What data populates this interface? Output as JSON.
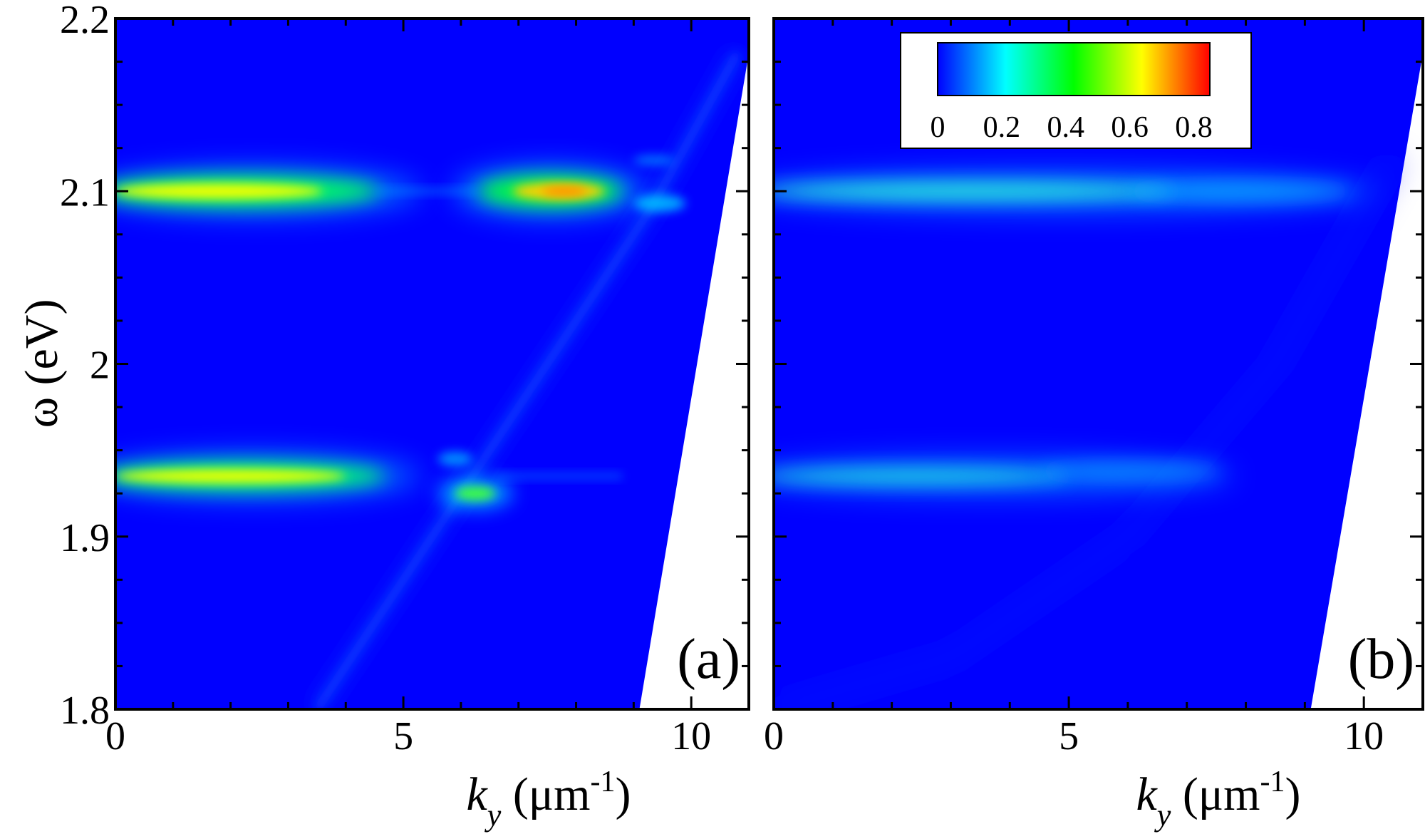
{
  "chart_data": [
    {
      "type": "heatmap",
      "panel_label": "(a)",
      "xlabel_var": "k",
      "xlabel_sub": "y",
      "xlabel_unit_open": " (μm",
      "xlabel_unit_sup": "-1",
      "xlabel_unit_close": ")",
      "ylabel": "ω (eV)",
      "xlim": [
        0,
        11
      ],
      "ylim": [
        1.8,
        2.2
      ],
      "x_ticks": [
        0,
        5,
        10
      ],
      "x_tick_labels": [
        "0",
        "5",
        "10"
      ],
      "y_ticks": [
        1.8,
        1.9,
        2.0,
        2.1,
        2.2
      ],
      "y_tick_labels": [
        "1.8",
        "1.9",
        "2",
        "2.1",
        "2.2"
      ],
      "background_value": 0.0,
      "undefined_region": "white wedge bounded by line from (9.1, 1.8) to (11.0, 2.18)",
      "features": [
        {
          "name": "upper exciton band",
          "omega": 2.1,
          "k_from": 0,
          "k_to": 4.5,
          "peak_intensity": 0.6
        },
        {
          "name": "upper polariton island",
          "omega": 2.1,
          "k_from": 6.3,
          "k_to": 8.8,
          "peak_intensity": 0.75
        },
        {
          "name": "lower exciton band",
          "omega": 1.935,
          "k_from": 0,
          "k_to": 4.6,
          "peak_intensity": 0.55
        },
        {
          "name": "lower anticrossing island",
          "omega": 1.925,
          "k_from": 5.7,
          "k_to": 6.8,
          "peak_intensity": 0.45
        },
        {
          "name": "dispersive photon branch",
          "points": [
            [
              3.5,
              1.8
            ],
            [
              5.9,
              1.92
            ],
            [
              7.9,
              2.02
            ],
            [
              9.3,
              2.09
            ],
            [
              10.8,
              2.18
            ]
          ],
          "peak_intensity": 0.15
        }
      ]
    },
    {
      "type": "heatmap",
      "panel_label": "(b)",
      "xlabel_var": "k",
      "xlabel_sub": "y",
      "xlabel_unit_open": " (μm",
      "xlabel_unit_sup": "-1",
      "xlabel_unit_close": ")",
      "xlim": [
        0,
        11
      ],
      "ylim": [
        1.8,
        2.2
      ],
      "x_ticks": [
        0,
        5,
        10
      ],
      "x_tick_labels": [
        "0",
        "5",
        "10"
      ],
      "y_ticks": [
        1.8,
        1.9,
        2.0,
        2.1,
        2.2
      ],
      "background_value": 0.0,
      "undefined_region": "white wedge bounded by line from (9.1, 1.8) to (11.0, 2.18)",
      "features": [
        {
          "name": "upper exciton band (fading)",
          "omega": 2.1,
          "k_from": 0,
          "k_to": 10,
          "peak_intensity": 0.25
        },
        {
          "name": "lower exciton band (fading)",
          "omega": 1.935,
          "k_from": 0,
          "k_to": 7.5,
          "peak_intensity": 0.22
        }
      ],
      "colorbar": {
        "min": 0,
        "max": 0.85,
        "ticks": [
          0,
          0.2,
          0.4,
          0.6,
          0.8
        ],
        "tick_labels": [
          "0",
          "0.2",
          "0.4",
          "0.6",
          "0.8"
        ],
        "colormap": [
          "#0000ff",
          "#00ffff",
          "#00ff00",
          "#ffff00",
          "#ff0000"
        ]
      }
    }
  ],
  "colors": {
    "background_field": "#0000ff",
    "frame": "#000000"
  }
}
